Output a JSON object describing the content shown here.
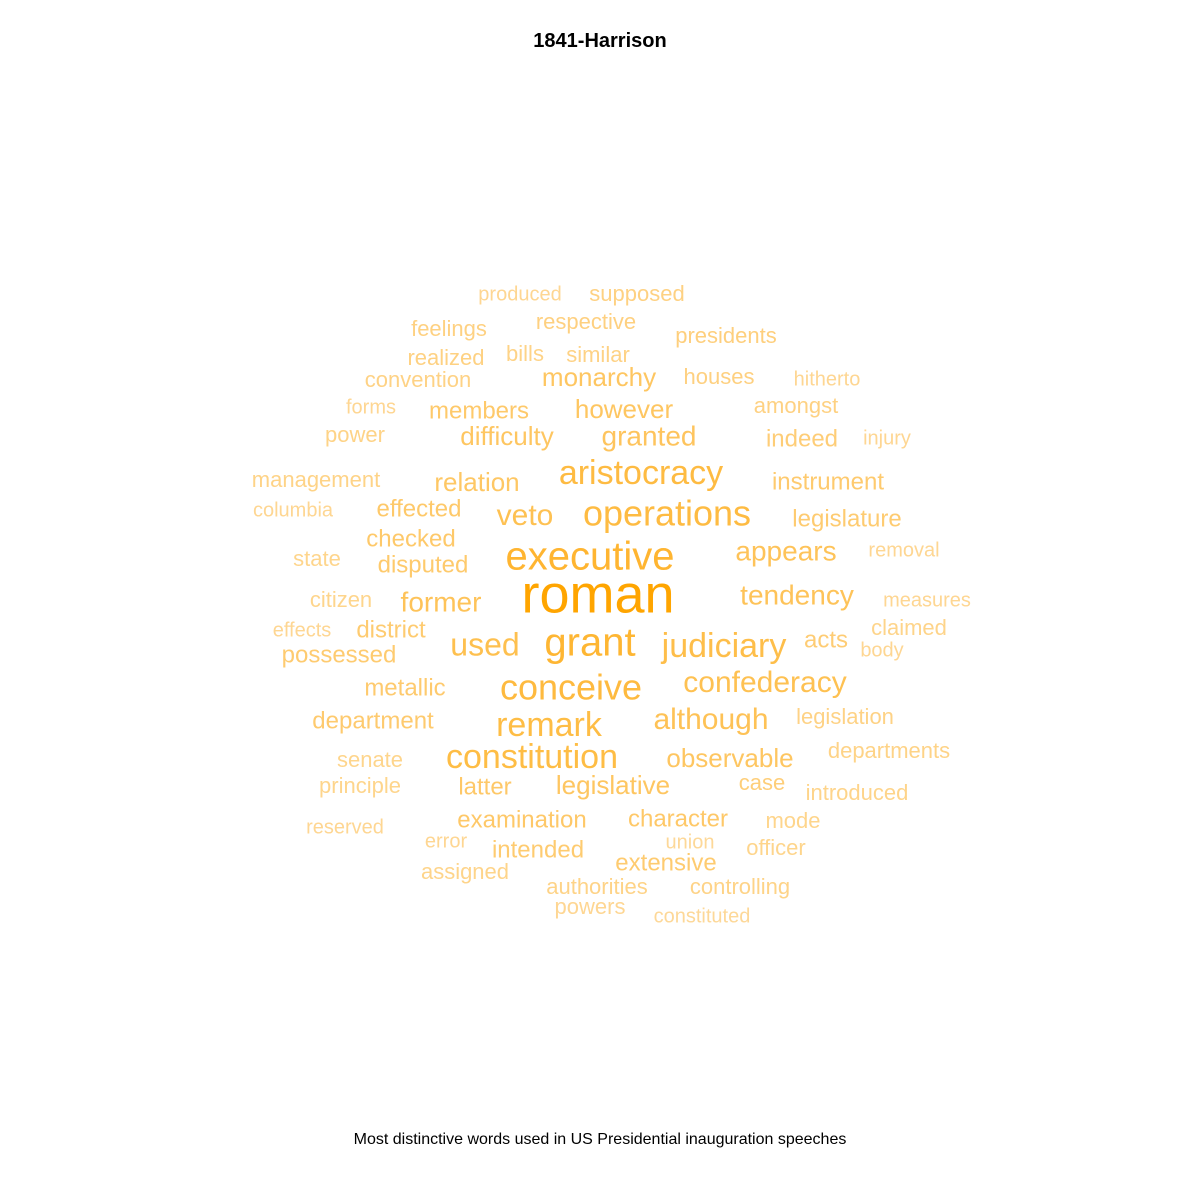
{
  "chart_data": {
    "type": "wordcloud",
    "title": "1841-Harrison",
    "caption": "Most distinctive words used in US Presidential inauguration speeches",
    "color_scale": {
      "low": "#FDE7C3",
      "high": "#FFA500"
    },
    "words": [
      {
        "word": "roman",
        "weight": 1.0
      },
      {
        "word": "executive",
        "weight": 0.62
      },
      {
        "word": "grant",
        "weight": 0.6
      },
      {
        "word": "aristocracy",
        "weight": 0.5
      },
      {
        "word": "operations",
        "weight": 0.5
      },
      {
        "word": "conceive",
        "weight": 0.52
      },
      {
        "word": "remark",
        "weight": 0.48
      },
      {
        "word": "constitution",
        "weight": 0.48
      },
      {
        "word": "judiciary",
        "weight": 0.45
      },
      {
        "word": "used",
        "weight": 0.42
      },
      {
        "word": "confederacy",
        "weight": 0.4
      },
      {
        "word": "although",
        "weight": 0.38
      },
      {
        "word": "veto",
        "weight": 0.4
      },
      {
        "word": "appears",
        "weight": 0.36
      },
      {
        "word": "tendency",
        "weight": 0.36
      },
      {
        "word": "former",
        "weight": 0.36
      },
      {
        "word": "granted",
        "weight": 0.34
      },
      {
        "word": "monarchy",
        "weight": 0.32
      },
      {
        "word": "however",
        "weight": 0.32
      },
      {
        "word": "difficulty",
        "weight": 0.32
      },
      {
        "word": "observable",
        "weight": 0.32
      },
      {
        "word": "legislative",
        "weight": 0.32
      },
      {
        "word": "relation",
        "weight": 0.3
      },
      {
        "word": "examination",
        "weight": 0.28
      },
      {
        "word": "character",
        "weight": 0.28
      },
      {
        "word": "latter",
        "weight": 0.28
      },
      {
        "word": "members",
        "weight": 0.27
      },
      {
        "word": "effected",
        "weight": 0.27
      },
      {
        "word": "checked",
        "weight": 0.27
      },
      {
        "word": "disputed",
        "weight": 0.26
      },
      {
        "word": "instrument",
        "weight": 0.25
      },
      {
        "word": "legislature",
        "weight": 0.24
      },
      {
        "word": "department",
        "weight": 0.25
      },
      {
        "word": "metallic",
        "weight": 0.25
      },
      {
        "word": "possessed",
        "weight": 0.24
      },
      {
        "word": "district",
        "weight": 0.24
      },
      {
        "word": "intended",
        "weight": 0.24
      },
      {
        "word": "extensive",
        "weight": 0.24
      },
      {
        "word": "acts",
        "weight": 0.22
      },
      {
        "word": "case",
        "weight": 0.2
      },
      {
        "word": "indeed",
        "weight": 0.21
      },
      {
        "word": "presidents",
        "weight": 0.18
      },
      {
        "word": "respective",
        "weight": 0.17
      },
      {
        "word": "houses",
        "weight": 0.17
      },
      {
        "word": "amongst",
        "weight": 0.16
      },
      {
        "word": "supposed",
        "weight": 0.16
      },
      {
        "word": "feelings",
        "weight": 0.16
      },
      {
        "word": "realized",
        "weight": 0.16
      },
      {
        "word": "convention",
        "weight": 0.15
      },
      {
        "word": "similar",
        "weight": 0.15
      },
      {
        "word": "bills",
        "weight": 0.14
      },
      {
        "word": "management",
        "weight": 0.14
      },
      {
        "word": "power",
        "weight": 0.14
      },
      {
        "word": "legislation",
        "weight": 0.15
      },
      {
        "word": "departments",
        "weight": 0.14
      },
      {
        "word": "introduced",
        "weight": 0.13
      },
      {
        "word": "authorities",
        "weight": 0.14
      },
      {
        "word": "controlling",
        "weight": 0.14
      },
      {
        "word": "claimed",
        "weight": 0.13
      },
      {
        "word": "mode",
        "weight": 0.12
      },
      {
        "word": "officer",
        "weight": 0.12
      },
      {
        "word": "assigned",
        "weight": 0.13
      },
      {
        "word": "citizen",
        "weight": 0.12
      },
      {
        "word": "state",
        "weight": 0.12
      },
      {
        "word": "senate",
        "weight": 0.12
      },
      {
        "word": "principle",
        "weight": 0.12
      },
      {
        "word": "produced",
        "weight": 0.1
      },
      {
        "word": "forms",
        "weight": 0.1
      },
      {
        "word": "columbia",
        "weight": 0.1
      },
      {
        "word": "hitherto",
        "weight": 0.1
      },
      {
        "word": "injury",
        "weight": 0.1
      },
      {
        "word": "removal",
        "weight": 0.1
      },
      {
        "word": "measures",
        "weight": 0.1
      },
      {
        "word": "effects",
        "weight": 0.1
      },
      {
        "word": "body",
        "weight": 0.1
      },
      {
        "word": "reserved",
        "weight": 0.1
      },
      {
        "word": "error",
        "weight": 0.1
      },
      {
        "word": "union",
        "weight": 0.08
      },
      {
        "word": "powers",
        "weight": 0.1
      },
      {
        "word": "constituted",
        "weight": 0.08
      }
    ]
  }
}
